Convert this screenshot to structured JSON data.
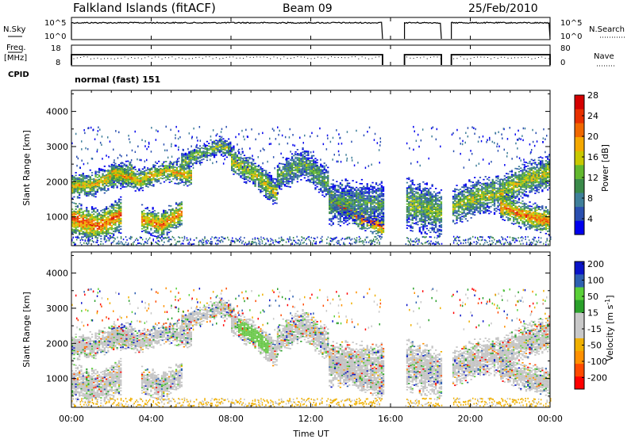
{
  "header": {
    "station": "Falkland Islands (fitACF)",
    "beam": "Beam 09",
    "date": "25/Feb/2010"
  },
  "status_panels": {
    "nsky_label": "N.Sky",
    "nsky_ticks": [
      "10^5",
      "10^0"
    ],
    "nsearch_label": "N.Search",
    "nsearch_ticks": [
      "10^5",
      "10^0"
    ],
    "freq_label": "Freq.",
    "freq_unit": "[MHz]",
    "freq_ticks": [
      "18",
      "8"
    ],
    "nave_label": "Nave",
    "nave_ticks": [
      "80",
      "0"
    ],
    "cpid_label": "CPID",
    "cpid_text": "normal (fast) 151",
    "data_gaps_ut": [
      [
        15.6,
        16.7
      ],
      [
        18.55,
        19.05
      ]
    ]
  },
  "colors": {
    "power_scale": [
      "#0000ee",
      "#2a4fb0",
      "#3f7f9a",
      "#3a8a4a",
      "#62b82e",
      "#c8c800",
      "#f4a800",
      "#f06800",
      "#e83000",
      "#d40000"
    ],
    "velocity_scale": [
      "#ff0000",
      "#ff4a00",
      "#ff9000",
      "#f0b000",
      "#c8c8c8",
      "#c8c8c8",
      "#2aa02a",
      "#5ad038",
      "#2e60b0",
      "#0a14c8"
    ]
  },
  "chart_data": [
    {
      "type": "heatmap",
      "title": "",
      "xlabel": "",
      "ylabel": "Slant Range [km]",
      "xlim": [
        0,
        24
      ],
      "ylim": [
        180,
        4600
      ],
      "yticks": [
        1000,
        2000,
        3000,
        4000
      ],
      "colorbar": {
        "label": "Power [dB]",
        "ticks": [
          "4",
          "8",
          "12",
          "16",
          "20",
          "24",
          "28"
        ],
        "range": [
          0,
          30
        ]
      },
      "echo_bands": [
        {
          "t0": 0.0,
          "t1": 3.1,
          "center": [
            1850,
            1900,
            2150,
            2200
          ],
          "width": 420,
          "level": 0.6
        },
        {
          "t0": 0.0,
          "t1": 2.5,
          "center": [
            950,
            700,
            1050
          ],
          "width": 550,
          "level": 0.8
        },
        {
          "t0": 2.0,
          "t1": 6.0,
          "center": [
            2250,
            2000,
            2300,
            2150
          ],
          "width": 350,
          "level": 0.65
        },
        {
          "t0": 3.5,
          "t1": 5.5,
          "center": [
            900,
            750,
            1100
          ],
          "width": 450,
          "level": 0.75
        },
        {
          "t0": 5.5,
          "t1": 8.0,
          "center": [
            2550,
            2700,
            2850,
            3000,
            2900
          ],
          "width": 300,
          "level": 0.45
        },
        {
          "t0": 8.0,
          "t1": 10.3,
          "center": [
            2600,
            2200,
            1600
          ],
          "width": 450,
          "level": 0.55
        },
        {
          "t0": 10.3,
          "t1": 12.9,
          "center": [
            2100,
            2500,
            1900
          ],
          "width": 500,
          "level": 0.4
        },
        {
          "t0": 12.9,
          "t1": 15.6,
          "center": [
            1500,
            1000,
            700
          ],
          "width": 350,
          "level": 0.85
        },
        {
          "t0": 12.9,
          "t1": 15.6,
          "center": [
            1400,
            1350
          ],
          "width": 700,
          "level": 0.35
        },
        {
          "t0": 16.7,
          "t1": 18.5,
          "center": [
            1400,
            1100
          ],
          "width": 800,
          "level": 0.45
        },
        {
          "t0": 19.1,
          "t1": 21.5,
          "center": [
            1250,
            1550,
            1650
          ],
          "width": 600,
          "level": 0.5
        },
        {
          "t0": 21.5,
          "t1": 24.0,
          "center": [
            1650,
            2050,
            2250
          ],
          "width": 550,
          "level": 0.55
        },
        {
          "t0": 21.5,
          "t1": 24.0,
          "center": [
            1300,
            1000,
            850
          ],
          "width": 450,
          "level": 0.75
        }
      ]
    },
    {
      "type": "heatmap",
      "title": "",
      "xlabel": "Time UT",
      "ylabel": "Slant Range [km]",
      "xlim": [
        0,
        24
      ],
      "ylim": [
        180,
        4600
      ],
      "xticks": [
        "00:00",
        "04:00",
        "08:00",
        "12:00",
        "16:00",
        "20:00",
        "00:00"
      ],
      "yticks": [
        1000,
        2000,
        3000,
        4000
      ],
      "colorbar": {
        "label": "Velocity [m s-1]",
        "ticks": [
          "200",
          "100",
          "50",
          "15",
          "-15",
          "-50",
          "-100",
          "-200"
        ]
      }
    }
  ]
}
